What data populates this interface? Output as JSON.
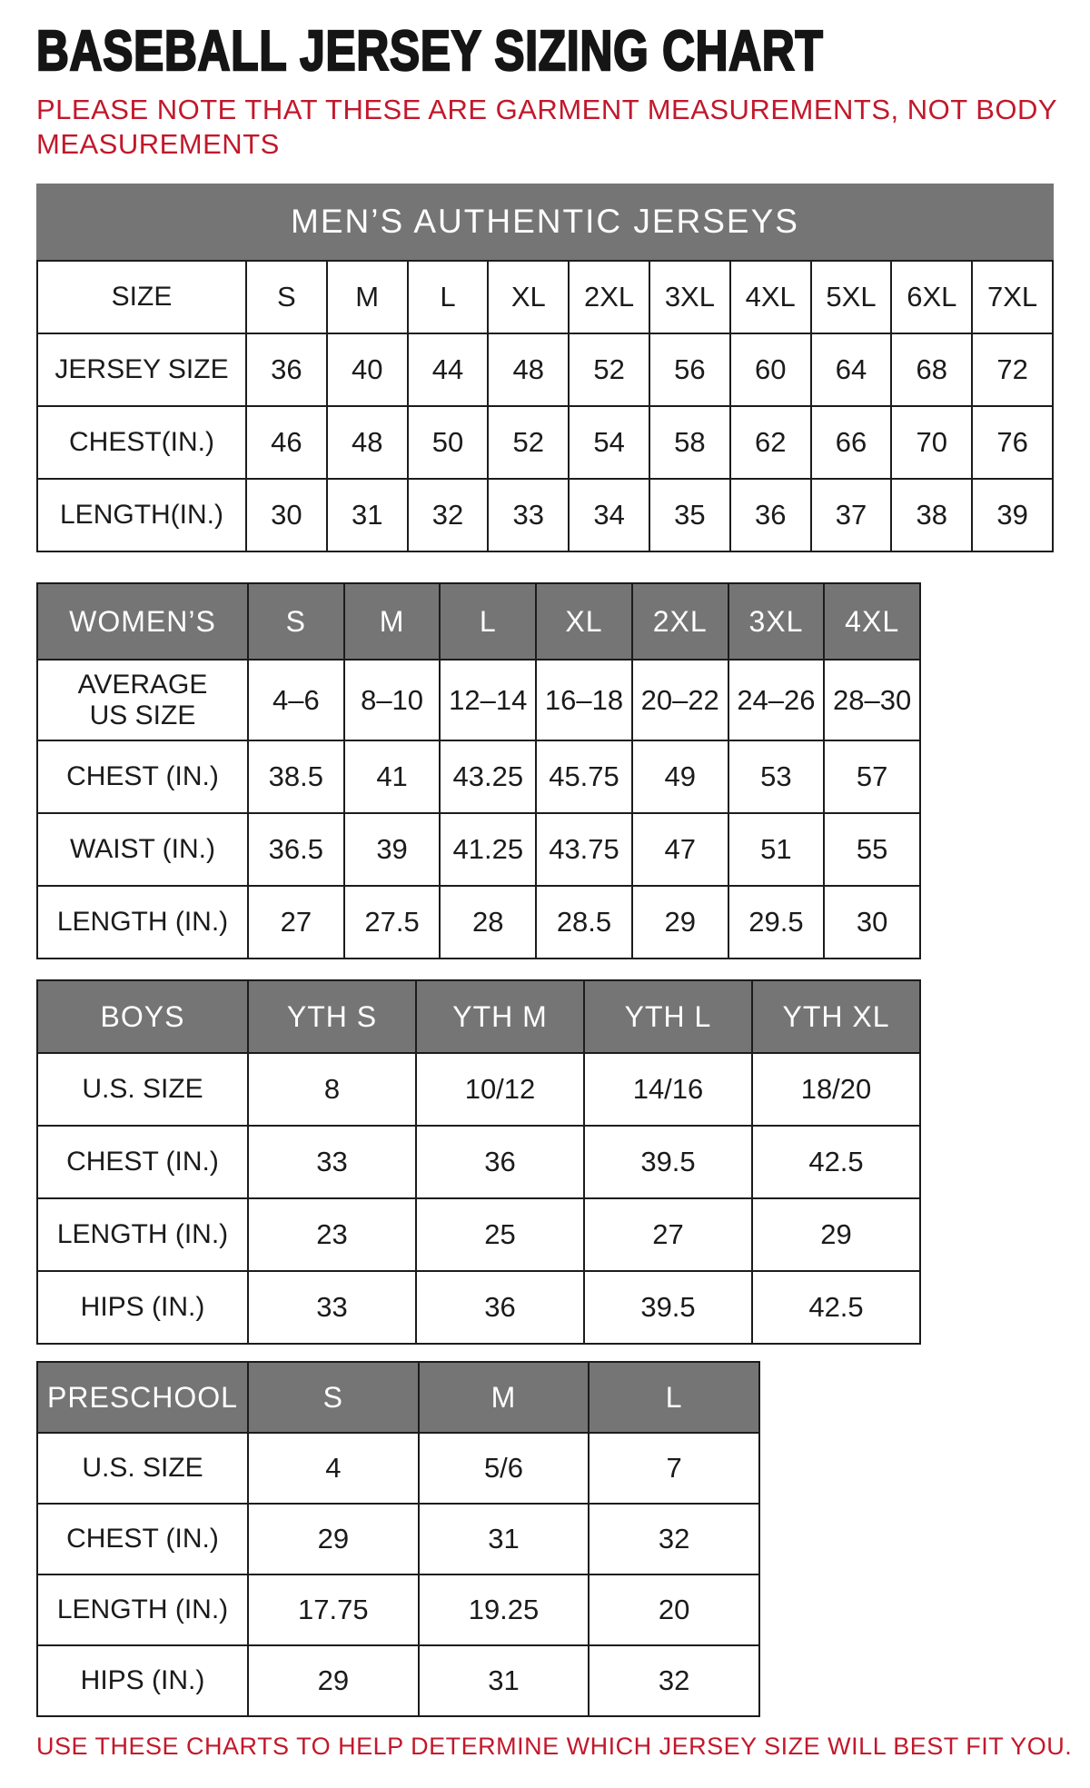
{
  "page": {
    "title": "BASEBALL JERSEY SIZING CHART",
    "note_lines": [
      "PLEASE NOTE THAT THESE ARE GARMENT MEASUREMENTS, NOT BODY",
      "MEASUREMENTS"
    ],
    "footer": "USE THESE CHARTS TO HELP DETERMINE WHICH JERSEY SIZE WILL BEST FIT YOU.",
    "colors": {
      "accent_red": "#c2182b",
      "header_gray": "#757575",
      "border_black": "#1c1c1c"
    }
  },
  "tables": {
    "mens": {
      "banner": "MEN’S AUTHENTIC JERSEYS",
      "rows": [
        {
          "label": "SIZE",
          "values": [
            "S",
            "M",
            "L",
            "XL",
            "2XL",
            "3XL",
            "4XL",
            "5XL",
            "6XL",
            "7XL"
          ]
        },
        {
          "label": "JERSEY SIZE",
          "values": [
            "36",
            "40",
            "44",
            "48",
            "52",
            "56",
            "60",
            "64",
            "68",
            "72"
          ]
        },
        {
          "label": "CHEST(IN.)",
          "values": [
            "46",
            "48",
            "50",
            "52",
            "54",
            "58",
            "62",
            "66",
            "70",
            "76"
          ]
        },
        {
          "label": "LENGTH(IN.)",
          "values": [
            "30",
            "31",
            "32",
            "33",
            "34",
            "35",
            "36",
            "37",
            "38",
            "39"
          ]
        }
      ]
    },
    "womens": {
      "header": {
        "label": "WOMEN’S",
        "columns": [
          "S",
          "M",
          "L",
          "XL",
          "2XL",
          "3XL",
          "4XL"
        ]
      },
      "rows": [
        {
          "label": "AVERAGE\nUS SIZE",
          "values": [
            "4–6",
            "8–10",
            "12–14",
            "16–18",
            "20–22",
            "24–26",
            "28–30"
          ]
        },
        {
          "label": "CHEST (IN.)",
          "values": [
            "38.5",
            "41",
            "43.25",
            "45.75",
            "49",
            "53",
            "57"
          ]
        },
        {
          "label": "WAIST (IN.)",
          "values": [
            "36.5",
            "39",
            "41.25",
            "43.75",
            "47",
            "51",
            "55"
          ]
        },
        {
          "label": "LENGTH (IN.)",
          "values": [
            "27",
            "27.5",
            "28",
            "28.5",
            "29",
            "29.5",
            "30"
          ]
        }
      ]
    },
    "boys": {
      "header": {
        "label": "BOYS",
        "columns": [
          "YTH S",
          "YTH M",
          "YTH L",
          "YTH XL"
        ]
      },
      "rows": [
        {
          "label": "U.S. SIZE",
          "values": [
            "8",
            "10/12",
            "14/16",
            "18/20"
          ]
        },
        {
          "label": "CHEST (IN.)",
          "values": [
            "33",
            "36",
            "39.5",
            "42.5"
          ]
        },
        {
          "label": "LENGTH (IN.)",
          "values": [
            "23",
            "25",
            "27",
            "29"
          ]
        },
        {
          "label": "HIPS (IN.)",
          "values": [
            "33",
            "36",
            "39.5",
            "42.5"
          ]
        }
      ]
    },
    "preschool": {
      "header": {
        "label": "PRESCHOOL",
        "columns": [
          "S",
          "M",
          "L"
        ]
      },
      "rows": [
        {
          "label": "U.S. SIZE",
          "values": [
            "4",
            "5/6",
            "7"
          ]
        },
        {
          "label": "CHEST (IN.)",
          "values": [
            "29",
            "31",
            "32"
          ]
        },
        {
          "label": "LENGTH (IN.)",
          "values": [
            "17.75",
            "19.25",
            "20"
          ]
        },
        {
          "label": "HIPS (IN.)",
          "values": [
            "29",
            "31",
            "32"
          ]
        }
      ]
    }
  }
}
